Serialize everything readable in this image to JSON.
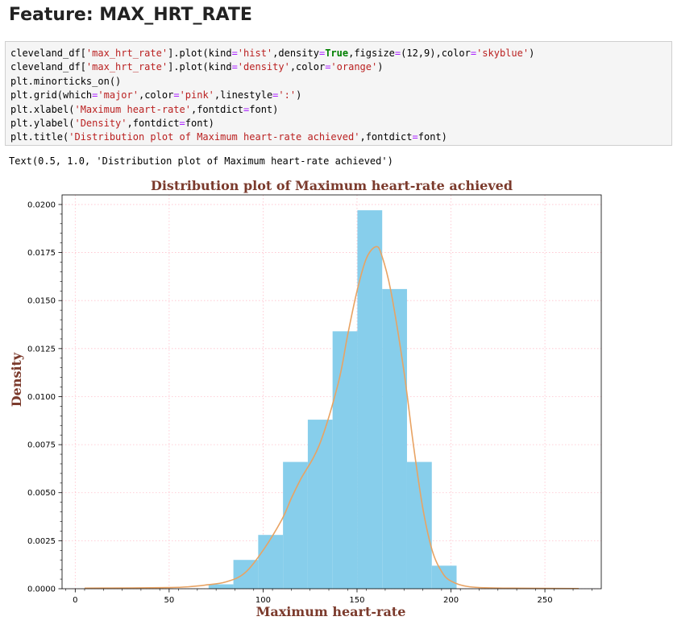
{
  "heading": "Feature: MAX_HRT_RATE",
  "code_lines": [
    [
      {
        "t": "cleveland_df["
      },
      {
        "t": "'max_hrt_rate'",
        "c": "str"
      },
      {
        "t": "].plot(kind"
      },
      {
        "t": "=",
        "c": "op"
      },
      {
        "t": "'hist'",
        "c": "str"
      },
      {
        "t": ",density"
      },
      {
        "t": "=",
        "c": "op"
      },
      {
        "t": "True",
        "c": "kw"
      },
      {
        "t": ",figsize"
      },
      {
        "t": "=",
        "c": "op"
      },
      {
        "t": "(12,9),color"
      },
      {
        "t": "=",
        "c": "op"
      },
      {
        "t": "'skyblue'",
        "c": "str"
      },
      {
        "t": ")"
      }
    ],
    [
      {
        "t": "cleveland_df["
      },
      {
        "t": "'max_hrt_rate'",
        "c": "str"
      },
      {
        "t": "].plot(kind"
      },
      {
        "t": "=",
        "c": "op"
      },
      {
        "t": "'density'",
        "c": "str"
      },
      {
        "t": ",color"
      },
      {
        "t": "=",
        "c": "op"
      },
      {
        "t": "'orange'",
        "c": "str"
      },
      {
        "t": ")"
      }
    ],
    [
      {
        "t": "plt.minorticks_on()"
      }
    ],
    [
      {
        "t": "plt.grid(which"
      },
      {
        "t": "=",
        "c": "op"
      },
      {
        "t": "'major'",
        "c": "str"
      },
      {
        "t": ",color"
      },
      {
        "t": "=",
        "c": "op"
      },
      {
        "t": "'pink'",
        "c": "str"
      },
      {
        "t": ",linestyle"
      },
      {
        "t": "=",
        "c": "op"
      },
      {
        "t": "':'",
        "c": "str"
      },
      {
        "t": ")"
      }
    ],
    [
      {
        "t": "plt.xlabel("
      },
      {
        "t": "'Maximum heart-rate'",
        "c": "str"
      },
      {
        "t": ",fontdict"
      },
      {
        "t": "=",
        "c": "op"
      },
      {
        "t": "font)"
      }
    ],
    [
      {
        "t": "plt.ylabel("
      },
      {
        "t": "'Density'",
        "c": "str"
      },
      {
        "t": ",fontdict"
      },
      {
        "t": "=",
        "c": "op"
      },
      {
        "t": "font)"
      }
    ],
    [
      {
        "t": "plt.title("
      },
      {
        "t": "'Distribution plot of Maximum heart-rate achieved'",
        "c": "str"
      },
      {
        "t": ",fontdict"
      },
      {
        "t": "=",
        "c": "op"
      },
      {
        "t": "font)"
      }
    ]
  ],
  "output_text": "Text(0.5, 1.0, 'Distribution plot of Maximum heart-rate achieved')",
  "chart_data": {
    "type": "bar",
    "title": "Distribution plot of Maximum heart-rate achieved",
    "xlabel": "Maximum heart-rate",
    "ylabel": "Density",
    "xlim": [
      -7,
      280
    ],
    "ylim": [
      0,
      0.0205
    ],
    "xticks": [
      0,
      50,
      100,
      150,
      200,
      250
    ],
    "yticks": [
      0.0,
      0.0025,
      0.005,
      0.0075,
      0.01,
      0.0125,
      0.015,
      0.0175,
      0.02
    ],
    "ytick_labels": [
      "0.0000",
      "0.0025",
      "0.0050",
      "0.0075",
      "0.0100",
      "0.0125",
      "0.0150",
      "0.0175",
      "0.0200"
    ],
    "grid": true,
    "hist_color": "#87ceeb",
    "density_color": "#e8a363",
    "grid_color": "#ffc0cb",
    "title_color": "#7b3a2c",
    "histogram": [
      {
        "x0": 71,
        "x1": 84.2,
        "value": 0.00023
      },
      {
        "x0": 84.2,
        "x1": 97.4,
        "value": 0.0015
      },
      {
        "x0": 97.4,
        "x1": 110.6,
        "value": 0.0028
      },
      {
        "x0": 110.6,
        "x1": 123.8,
        "value": 0.0066
      },
      {
        "x0": 123.8,
        "x1": 137.0,
        "value": 0.0088
      },
      {
        "x0": 137.0,
        "x1": 150.2,
        "value": 0.0134
      },
      {
        "x0": 150.2,
        "x1": 163.4,
        "value": 0.0197
      },
      {
        "x0": 163.4,
        "x1": 176.6,
        "value": 0.0156
      },
      {
        "x0": 176.6,
        "x1": 189.8,
        "value": 0.0066
      },
      {
        "x0": 189.8,
        "x1": 203.0,
        "value": 0.0012
      }
    ],
    "density": {
      "x": [
        5,
        30,
        50,
        60,
        70,
        80,
        90,
        100,
        110,
        115,
        120,
        130,
        140,
        145,
        150,
        155,
        160,
        163,
        168,
        175,
        180,
        185,
        190,
        195,
        200,
        210,
        230,
        268
      ],
      "y": [
        3e-05,
        4e-05,
        6e-05,
        0.0001,
        0.0002,
        0.00035,
        0.0008,
        0.002,
        0.0036,
        0.0047,
        0.0057,
        0.0075,
        0.0107,
        0.0132,
        0.0155,
        0.0172,
        0.0178,
        0.0174,
        0.0155,
        0.0113,
        0.0075,
        0.0042,
        0.002,
        0.0009,
        0.0004,
        0.0001,
        3e-05,
        1e-05
      ]
    }
  }
}
